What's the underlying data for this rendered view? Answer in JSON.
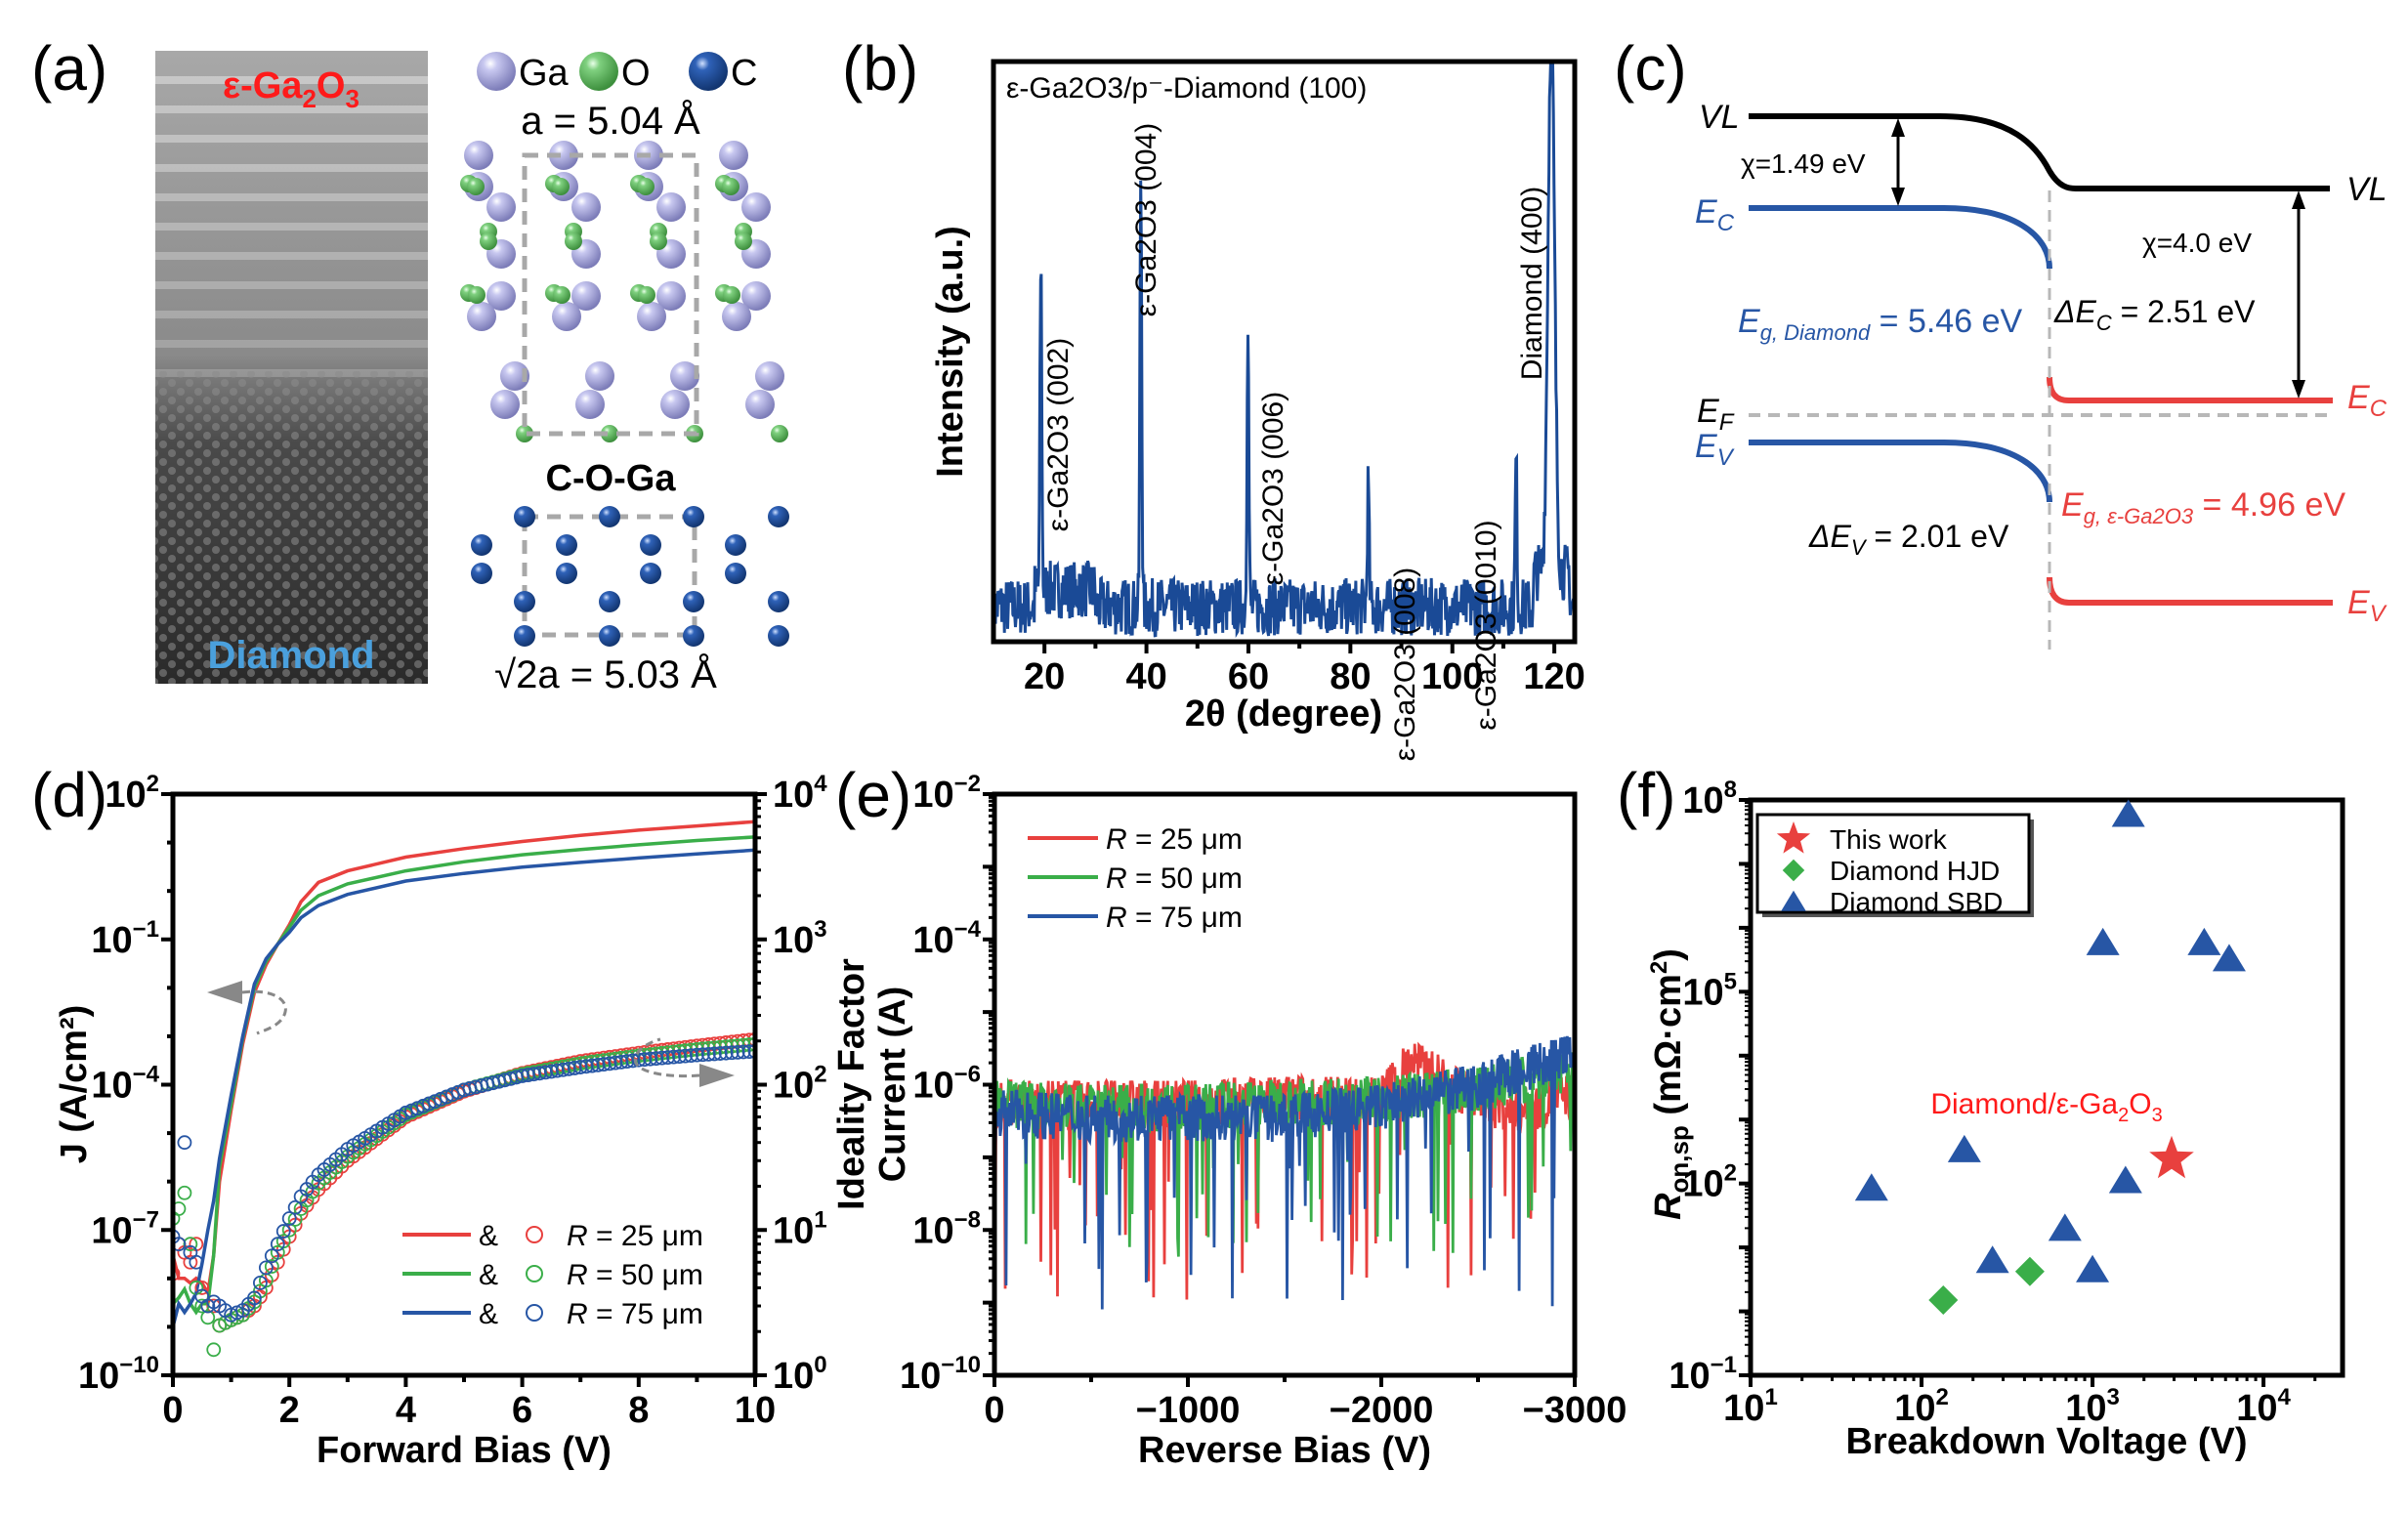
{
  "colors": {
    "red": "#e8403e",
    "green": "#3aae49",
    "blue": "#2756a5",
    "xrd_blue": "#1a4a96",
    "gray_dash": "#b0b0b0",
    "ga_atom": "#a9a9e0",
    "o_atom": "#6cc26c",
    "c_atom": "#1f4f9a",
    "label_red": "#ff1a1a",
    "label_lightblue": "#4aa0dd"
  },
  "panels": {
    "a": {
      "label": "(a)",
      "tem_top_label": "ε-Ga",
      "tem_top_sub2": "2",
      "tem_top_O": "O",
      "tem_top_sub3": "3",
      "tem_bottom_label": "Diamond",
      "legend": [
        {
          "element": "Ga",
          "color_key": "ga_atom"
        },
        {
          "element": "O",
          "color_key": "o_atom"
        },
        {
          "element": "C",
          "color_key": "c_atom"
        }
      ],
      "lattice_top_label": "a = 5.04 Å",
      "interface_label": "C-O-Ga",
      "lattice_bottom_sqrt": "√",
      "lattice_bottom_label": "2a = 5.03 Å"
    },
    "b": {
      "label": "(b)"
    },
    "c": {
      "label": "(c)",
      "vl_left": "VL",
      "vl_right": "VL",
      "chi_left": "χ=1.49 eV",
      "chi_right": "χ=4.0 eV",
      "ec_left_main": "E",
      "ec_left_sub": "C",
      "ev_left_main": "E",
      "ev_left_sub": "V",
      "ef_main": "E",
      "ef_sub": "F",
      "ec_right_main": "E",
      "ec_right_sub": "C",
      "ev_right_main": "E",
      "ev_right_sub": "V",
      "eg_diamond_main": "E",
      "eg_diamond_sub": "g, Diamond",
      "eg_diamond_value": " = 5.46 eV",
      "eg_ga2o3_main": "E",
      "eg_ga2o3_sub": "g, ε-Ga2O3",
      "eg_ga2o3_value": " = 4.96 eV",
      "delta_ec_main": "ΔE",
      "delta_ec_sub": "C",
      "delta_ec_value": " = 2.51 eV",
      "delta_ev_main": "ΔE",
      "delta_ev_sub": "V",
      "delta_ev_value": " = 2.01 eV"
    },
    "d": {
      "label": "(d)",
      "legend_amp": "&",
      "arrow_left_hint": "left-axis",
      "arrow_right_hint": "right-axis"
    },
    "e": {
      "label": "(e)"
    },
    "f": {
      "label": "(f)",
      "annotation": "Diamond/ε-Ga",
      "annotation_sub2": "2",
      "annotation_O": "O",
      "annotation_sub3": "3"
    }
  },
  "chart_data": [
    {
      "id": "b",
      "type": "line",
      "title": "ε-Ga2O3/p⁻-Diamond (100)",
      "xlabel": "2θ (degree)",
      "ylabel": "Intensity (a.u.)",
      "xlim": [
        10,
        124
      ],
      "ylim": [
        0,
        1
      ],
      "xticks": [
        20,
        40,
        60,
        80,
        100,
        120
      ],
      "baseline": 0.06,
      "noise_amplitude": 0.05,
      "peaks": [
        {
          "x": 19.3,
          "y": 0.63,
          "label": "ε-Ga2O3 (002)"
        },
        {
          "x": 38.9,
          "y": 0.81,
          "label": "ε-Ga2O3 (004)"
        },
        {
          "x": 59.9,
          "y": 0.57,
          "label": "ε-Ga2O3 (006)"
        },
        {
          "x": 83.5,
          "y": 0.27,
          "label": "ε-Ga2O3 (008)"
        },
        {
          "x": 112.5,
          "y": 0.31,
          "label": "ε-Ga2O3 (0010)"
        },
        {
          "x": 119.4,
          "y": 1.0,
          "label": "Diamond (400)"
        }
      ],
      "grid": false
    },
    {
      "id": "d",
      "type": "line",
      "xlabel": "Forward Bias (V)",
      "ylabel_left": "J (A/cm²)",
      "ylabel_right": "Ideality Factor",
      "xlim": [
        0,
        10
      ],
      "ylim_left_log10": [
        -10,
        2
      ],
      "ylim_right_log10": [
        0,
        4
      ],
      "xticks": [
        0,
        2,
        4,
        6,
        8,
        10
      ],
      "yticks_left": [
        "10^2",
        "10^-1",
        "10^-4",
        "10^-7",
        "10^-10"
      ],
      "yticks_right": [
        "10^4",
        "10^3",
        "10^2",
        "10^1",
        "10^0"
      ],
      "x": [
        0,
        0.1,
        0.2,
        0.3,
        0.4,
        0.5,
        0.6,
        0.7,
        0.8,
        1.0,
        1.2,
        1.4,
        1.6,
        1.8,
        2.0,
        2.2,
        2.5,
        3.0,
        4.0,
        5.0,
        6.0,
        7.0,
        8.0,
        9.0,
        10.0
      ],
      "series": [
        {
          "name": "R = 25 μm",
          "color_key": "red",
          "J": [
            3e-08,
            1e-08,
            1e-08,
            8e-09,
            1e-08,
            8e-09,
            5e-09,
            3e-08,
            1e-06,
            3e-05,
            0.0007,
            0.008,
            0.03,
            0.08,
            0.2,
            0.6,
            1.5,
            2.6,
            5,
            7.5,
            10.5,
            14,
            18,
            22,
            27
          ],
          "ideality": [
            5,
            8,
            7,
            6,
            8,
            4,
            3,
            3,
            2.2,
            2.4,
            2.6,
            3,
            4,
            6,
            9,
            13,
            19,
            30,
            60,
            90,
            120,
            145,
            165,
            185,
            205
          ]
        },
        {
          "name": "R = 50 μm",
          "color_key": "green",
          "J": [
            3e-09,
            4e-09,
            6e-09,
            3e-09,
            2e-09,
            3e-09,
            3e-09,
            3e-08,
            2e-06,
            4e-05,
            0.0009,
            0.01,
            0.035,
            0.08,
            0.18,
            0.4,
            0.8,
            1.4,
            2.6,
            4,
            5.6,
            7.2,
            9,
            11,
            13
          ],
          "ideality": [
            12,
            14,
            18,
            8,
            4,
            3,
            2.5,
            1.5,
            2.2,
            2.4,
            2.6,
            3.2,
            4.5,
            7,
            10,
            14,
            21,
            32,
            62,
            92,
            118,
            140,
            158,
            175,
            190
          ]
        },
        {
          "name": "R = 75 μm",
          "color_key": "blue",
          "J": [
            1e-09,
            3e-09,
            2e-09,
            3e-09,
            5e-09,
            2e-08,
            1e-07,
            4e-07,
            3e-06,
            6e-05,
            0.001,
            0.012,
            0.04,
            0.08,
            0.14,
            0.28,
            0.5,
            0.85,
            1.6,
            2.3,
            3.1,
            3.9,
            4.8,
            5.8,
            7
          ]
        },
        {
          "name": "R = 75 μm ideality",
          "color_key": "blue",
          "ideality": [
            9,
            8,
            40,
            7,
            6,
            3.5,
            3,
            3.2,
            3,
            2.6,
            2.8,
            3.4,
            5.5,
            8,
            12,
            17,
            24,
            36,
            64,
            92,
            115,
            132,
            148,
            160,
            170
          ]
        }
      ],
      "legend": [
        "R = 25 μm",
        "R = 50 μm",
        "R = 75 μm"
      ],
      "legend_position": "bottom-right",
      "grid": false
    },
    {
      "id": "e",
      "type": "line",
      "xlabel": "Reverse Bias (V)",
      "ylabel": "Current (A)",
      "xlim": [
        0,
        -3000
      ],
      "ylim_log10": [
        -10,
        -2
      ],
      "xticks": [
        0,
        -1000,
        -2000,
        -3000
      ],
      "yticks": [
        "10^-2",
        "10^-4",
        "10^-6",
        "10^-8",
        "10^-10"
      ],
      "series": [
        {
          "name": "R = 25 μm",
          "color_key": "red",
          "x": [
            0,
            -500,
            -1000,
            -1500,
            -2000,
            -2150,
            -2500,
            -2700,
            -3000
          ],
          "y": [
            8e-07,
            8e-07,
            8e-07,
            9e-07,
            9e-07,
            3e-06,
            9e-07,
            6e-07,
            1e-06
          ],
          "min_dip": 1e-09
        },
        {
          "name": "R = 50 μm",
          "color_key": "green",
          "x": [
            0,
            -500,
            -1000,
            -1500,
            -2000,
            -2500,
            -2700,
            -3000
          ],
          "y": [
            8e-07,
            7e-07,
            7e-07,
            8e-07,
            9e-07,
            1.2e-06,
            1.6e-06,
            2e-06
          ],
          "min_dip": 4e-09
        },
        {
          "name": "R = 75 μm",
          "color_key": "blue",
          "x": [
            0,
            -500,
            -1000,
            -1500,
            -2000,
            -2500,
            -2700,
            -3000
          ],
          "y": [
            6e-07,
            5e-07,
            5e-07,
            5e-07,
            7e-07,
            1.4e-06,
            2.2e-06,
            3.5e-06
          ],
          "min_dip": 8e-10
        }
      ],
      "legend": [
        "R = 25 μm",
        "R = 50 μm",
        "R = 75 μm"
      ],
      "legend_position": "top-left",
      "grid": false
    },
    {
      "id": "f",
      "type": "scatter",
      "xlabel": "Breakdown Voltage (V)",
      "ylabel": "R_on,sp (mΩ·cm²)",
      "xscale": "log",
      "yscale": "log",
      "xlim": [
        10,
        29000
      ],
      "ylim": [
        0.1,
        100000000
      ],
      "xticks": [
        "10^1",
        "10^2",
        "10^3",
        "10^4"
      ],
      "yticks": [
        "10^8",
        "10^5",
        "10^2",
        "10^-1"
      ],
      "series": [
        {
          "name": "This work",
          "marker": "star",
          "color_key": "red",
          "points": [
            [
              2900,
              240
            ]
          ]
        },
        {
          "name": "Diamond HJD",
          "marker": "diamond",
          "color_key": "green",
          "points": [
            [
              134,
              1.5
            ],
            [
              430,
              4.2
            ]
          ]
        },
        {
          "name": "Diamond SBD",
          "marker": "triangle",
          "color_key": "blue",
          "points": [
            [
              1620,
              60000000
            ],
            [
              1150,
              590000
            ],
            [
              4500,
              590000
            ],
            [
              6300,
              330000
            ],
            [
              178,
              340
            ],
            [
              51,
              85
            ],
            [
              1560,
              112
            ],
            [
              690,
              20
            ],
            [
              260,
              6.3
            ],
            [
              1000,
              4.5
            ]
          ]
        }
      ],
      "legend_position": "top-left",
      "annotation": "Diamond/ε-Ga2O3",
      "grid": false
    }
  ]
}
